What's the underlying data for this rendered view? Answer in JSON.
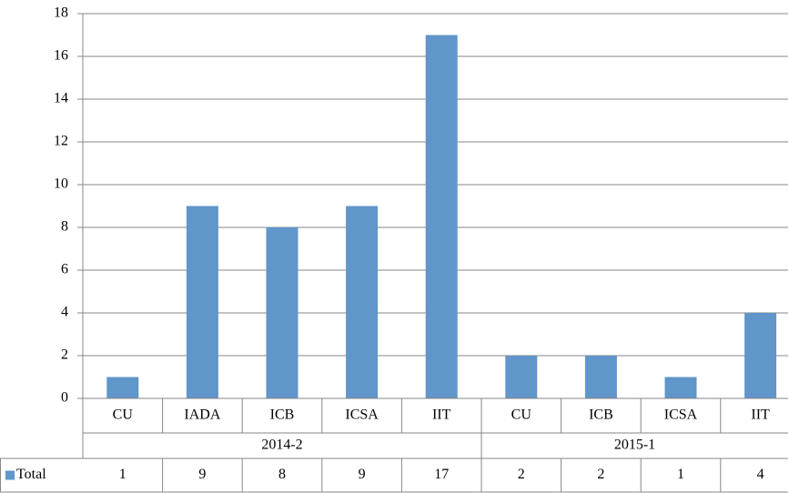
{
  "chart_data": {
    "type": "bar",
    "groups": [
      {
        "name": "2014-2",
        "categories": [
          "CU",
          "IADA",
          "ICB",
          "ICSA",
          "IIT"
        ]
      },
      {
        "name": "2015-1",
        "categories": [
          "CU",
          "ICB",
          "ICSA",
          "IIT"
        ]
      }
    ],
    "series": [
      {
        "name": "Total",
        "color": "#6096c9",
        "values": [
          1,
          9,
          8,
          9,
          17,
          2,
          2,
          1,
          4
        ]
      }
    ],
    "ylim": [
      0,
      18
    ],
    "yticks": [
      0,
      2,
      4,
      6,
      8,
      10,
      12,
      14,
      16,
      18
    ],
    "grid": true,
    "legend": "data-table"
  }
}
